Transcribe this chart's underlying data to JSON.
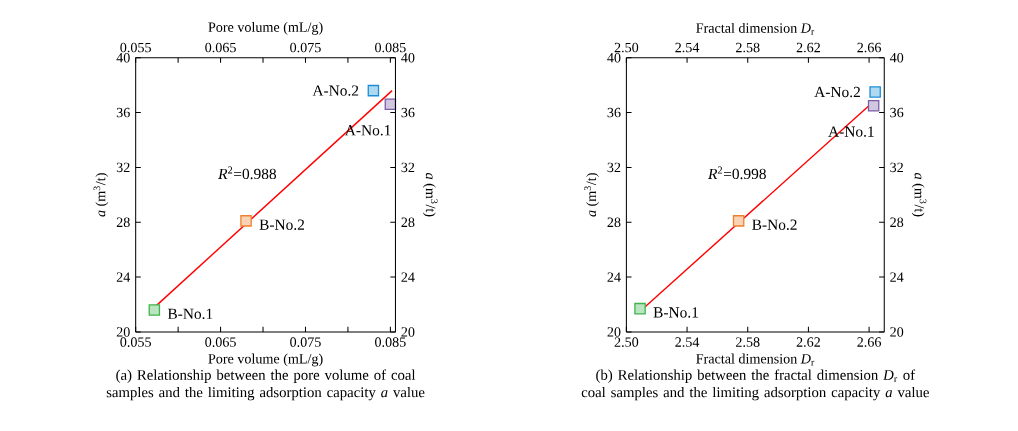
{
  "chart_data": [
    {
      "type": "scatter",
      "xlabel": "Pore volume (mL/g)",
      "x2label": "Pore volume (mL/g)",
      "ylabel": "*a* (m$^{3}$/t)",
      "y2label": "*a* (m$^{3}$/t)",
      "marker": "square",
      "x": [
        0.083,
        0.085,
        0.068,
        0.0572
      ],
      "series": [
        {
          "type": "scatter",
          "colors": [
            "#1a8fd8",
            "#7b5ea7",
            "#f08030",
            "#3cb44b"
          ],
          "values": [
            37.6,
            36.6,
            28.1,
            21.6
          ]
        },
        {
          "type": "line",
          "marker": "none",
          "color": "#ff0000",
          "x": [
            0.0574,
            0.0852
          ],
          "values": [
            21.9,
            37.6
          ]
        }
      ],
      "xlim": [
        0.055,
        0.0856
      ],
      "x2lim": [
        0.055,
        0.0856
      ],
      "ylim": [
        20,
        40
      ],
      "y2lim": [
        20,
        40
      ],
      "xticks": [
        0.055,
        {
          "value": 0.06,
          "label": null
        },
        0.065,
        {
          "value": 0.07,
          "label": null
        },
        0.075,
        {
          "value": 0.08,
          "label": null
        },
        0.085
      ],
      "x2ticks": [
        0.055,
        {
          "value": 0.06,
          "label": null
        },
        0.065,
        {
          "value": 0.07,
          "label": null
        },
        0.075,
        {
          "value": 0.08,
          "label": null
        },
        0.085
      ],
      "yticks": [
        20,
        24,
        28,
        32,
        36,
        40
      ],
      "y2ticks": [
        20,
        24,
        28,
        32,
        36,
        40
      ],
      "annotations": [
        {
          "text": "A-No.2",
          "x": 0.083,
          "y": 37.6
        },
        {
          "text": "A-No.1",
          "x": 0.085,
          "y": 36.6
        },
        {
          "text": "B-No.2",
          "x": 0.068,
          "y": 28.1
        },
        {
          "text": "B-No.1",
          "x": 0.0572,
          "y": 21.6
        },
        "*R*$^{2}$=0.988",
        "(a) Relationship between the pore volume of coal samples and the limiting adsorption capacity *a* value"
      ]
    },
    {
      "type": "scatter",
      "xlabel": "Fractal dimension *D*$_{r}$",
      "x2label": "Fractal dimension *D*$_{r}$",
      "ylabel": "*a* (m$^{3}$/t)",
      "y2label": "*a* (m$^{3}$/t)",
      "marker": "square",
      "x": [
        2.664,
        2.663,
        2.574,
        2.509
      ],
      "series": [
        {
          "type": "scatter",
          "colors": [
            "#1a8fd8",
            "#7b5ea7",
            "#f08030",
            "#3cb44b"
          ],
          "values": [
            37.5,
            36.5,
            28.1,
            21.7
          ]
        },
        {
          "type": "line",
          "marker": "none",
          "color": "#ff0000",
          "x": [
            2.512,
            2.663
          ],
          "values": [
            21.8,
            36.8
          ]
        }
      ],
      "xlim": [
        2.5,
        2.67
      ],
      "x2lim": [
        2.5,
        2.67
      ],
      "ylim": [
        20,
        40
      ],
      "y2lim": [
        20,
        40
      ],
      "xticks": [
        {
          "value": 2.5,
          "label": "2.50"
        },
        {
          "value": 2.54,
          "label": "2.54"
        },
        {
          "value": 2.58,
          "label": "2.58"
        },
        {
          "value": 2.62,
          "label": "2.62"
        },
        {
          "value": 2.66,
          "label": "2.66"
        }
      ],
      "x2ticks": [
        {
          "value": 2.5,
          "label": "2.50"
        },
        {
          "value": 2.54,
          "label": "2.54"
        },
        {
          "value": 2.58,
          "label": "2.58"
        },
        {
          "value": 2.62,
          "label": "2.62"
        },
        {
          "value": 2.66,
          "label": "2.66"
        }
      ],
      "yticks": [
        20,
        24,
        28,
        32,
        36,
        40
      ],
      "y2ticks": [
        20,
        24,
        28,
        32,
        36,
        40
      ],
      "annotations": [
        {
          "text": "A-No.2",
          "x": 2.664,
          "y": 37.5
        },
        {
          "text": "A-No.1",
          "x": 2.663,
          "y": 36.5
        },
        {
          "text": "B-No.2",
          "x": 2.574,
          "y": 28.1
        },
        {
          "text": "B-No.1",
          "x": 2.509,
          "y": 21.7
        },
        "*R*$^{2}$=0.998",
        "(b) Relationship between the fractal dimension *D*$_{r}$ of coal samples and the limiting adsorption capacity *a* value"
      ]
    }
  ]
}
